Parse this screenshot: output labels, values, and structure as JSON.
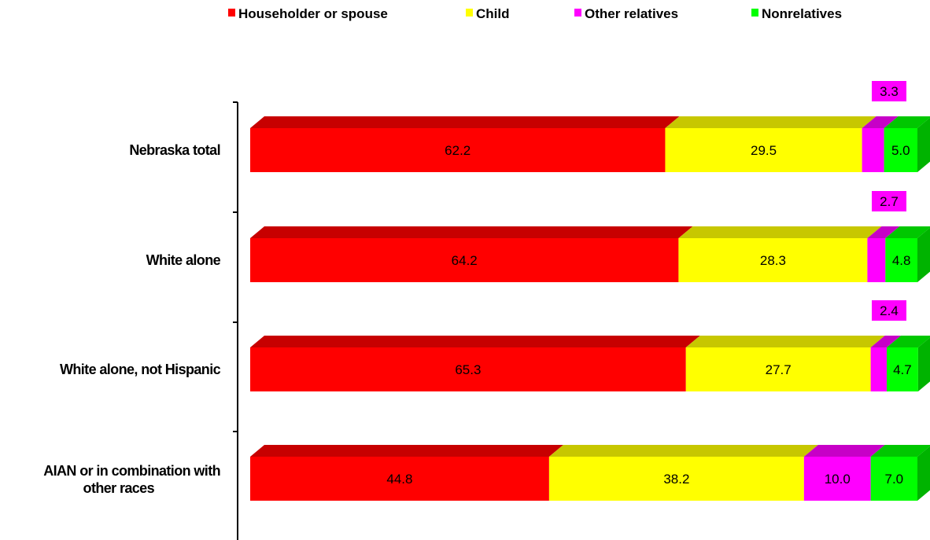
{
  "chart_data": {
    "type": "bar",
    "orientation": "horizontal",
    "stacked": "100%",
    "categories": [
      "Nebraska total",
      "White alone",
      "White alone, not Hispanic",
      "AIAN or in combination with other races"
    ],
    "series": [
      {
        "name": "Householder or spouse",
        "values": [
          62.2,
          64.2,
          65.3,
          44.8
        ],
        "color": "#ff0000"
      },
      {
        "name": "Child",
        "values": [
          29.5,
          28.3,
          27.7,
          38.2
        ],
        "color": "#ffff00"
      },
      {
        "name": "Other relatives",
        "values": [
          3.3,
          2.7,
          2.4,
          10.0
        ],
        "color": "#ff00ff"
      },
      {
        "name": "Nonrelatives",
        "values": [
          5.0,
          4.8,
          4.7,
          7.0
        ],
        "color": "#00ff00"
      }
    ],
    "legend_position": "top",
    "xlim": [
      0,
      100
    ],
    "grid": false
  }
}
